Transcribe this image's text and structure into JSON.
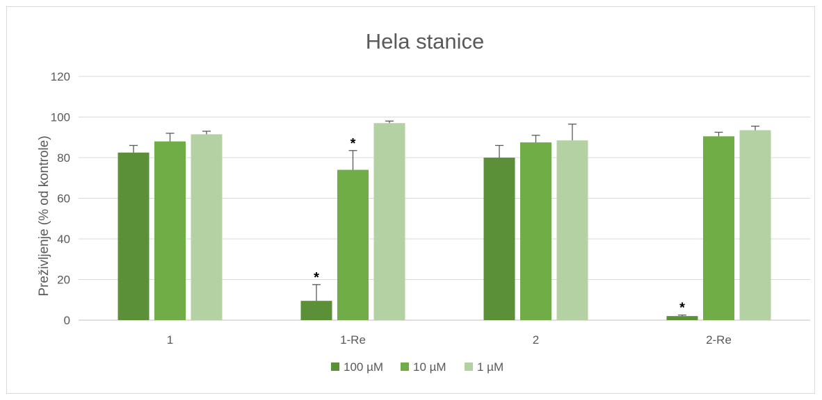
{
  "chart_data": {
    "type": "bar",
    "title": "Hela stanice",
    "xlabel": "",
    "ylabel": "Preživljenje (% od kontrole)",
    "ylim": [
      0,
      120
    ],
    "yticks": [
      0,
      20,
      40,
      60,
      80,
      100,
      120
    ],
    "categories": [
      "1",
      "1-Re",
      "2",
      "2-Re"
    ],
    "series": [
      {
        "name": "100 µM",
        "color": "#5b8f38",
        "values": [
          82.5,
          9.5,
          80,
          2
        ],
        "errors": [
          3.5,
          8,
          6,
          0.5
        ]
      },
      {
        "name": "10 µM",
        "color": "#71ad47",
        "values": [
          88,
          74,
          87.5,
          90.5
        ],
        "errors": [
          4,
          9.5,
          3.5,
          2
        ]
      },
      {
        "name": "1 µM",
        "color": "#b4d1a4",
        "values": [
          91.5,
          97,
          88.5,
          93.5
        ],
        "errors": [
          1.5,
          1,
          8,
          2
        ]
      }
    ],
    "significance": [
      {
        "category": "1-Re",
        "series": "100 µM",
        "label": "*"
      },
      {
        "category": "1-Re",
        "series": "10 µM",
        "label": "*"
      },
      {
        "category": "2-Re",
        "series": "100 µM",
        "label": "*"
      }
    ],
    "grid": true,
    "legend_position": "bottom"
  }
}
